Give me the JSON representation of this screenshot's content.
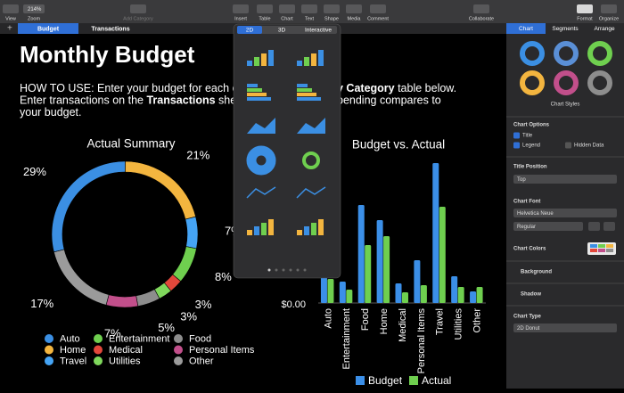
{
  "toolbar": {
    "items": [
      "View",
      "Zoom",
      "Add Category",
      "Insert",
      "Table",
      "Chart",
      "Text",
      "Shape",
      "Media",
      "Comment",
      "Collaborate",
      "Format",
      "Organize"
    ],
    "zoom": "214%"
  },
  "sheet_tabs": [
    "Budget",
    "Transactions"
  ],
  "sheet": {
    "title": "Monthly Budget",
    "instructions": [
      {
        "left": [
          {
            "text": "HOW TO USE: Enter your budget for each cate",
            "bold": false
          }
        ],
        "right": [
          {
            "text": "y Category",
            "bold": true
          },
          {
            "text": " table below.",
            "bold": false
          }
        ]
      },
      {
        "left": [
          {
            "text": "Enter transactions on the ",
            "bold": false
          },
          {
            "text": "Transactions",
            "bold": true
          },
          {
            "text": " sheet t",
            "bold": false
          }
        ],
        "right": [
          {
            "text": "pending compares to",
            "bold": false
          }
        ]
      },
      {
        "left": [
          {
            "text": "your budget.",
            "bold": false
          }
        ],
        "right": []
      }
    ]
  },
  "donut_chart": {
    "type": "donut",
    "title": "Actual Summary",
    "categories": [
      "Auto",
      "Home",
      "Travel",
      "Entertainment",
      "Medical",
      "Utilities",
      "Food",
      "Personal Items",
      "Other"
    ],
    "values": [
      29,
      21,
      7,
      8,
      3,
      3,
      5,
      7,
      17
    ],
    "value_labels": [
      "29%",
      "21%",
      "7%",
      "8%",
      "3%",
      "3%",
      "5%",
      "7%",
      "17%"
    ],
    "colors": [
      "#3b8fe3",
      "#f3b53f",
      "#45a4f5",
      "#6fcf4f",
      "#e2473b",
      "#7fd85c",
      "#8d8d8d",
      "#c24f8b",
      "#9b9b9b"
    ]
  },
  "bar_chart": {
    "type": "bar",
    "title": "Budget vs. Actual",
    "categories": [
      "Auto",
      "Entertainment",
      "Food",
      "Home",
      "Medical",
      "Personal Items",
      "Travel",
      "Utilities",
      "Other"
    ],
    "series": [
      {
        "name": "Budget",
        "color": "#3b8fe8",
        "values": [
          850,
          240,
          1100,
          930,
          220,
          480,
          1570,
          300,
          130
        ]
      },
      {
        "name": "Actual",
        "color": "#6fcf4f",
        "values": [
          270,
          150,
          650,
          750,
          120,
          200,
          1080,
          180,
          180
        ]
      }
    ],
    "ylim": [
      0,
      1600
    ],
    "yticks": [
      {
        "value": 0,
        "label": "$0.00"
      }
    ]
  },
  "popover": {
    "tabs": [
      "2D",
      "3D",
      "Interactive"
    ]
  },
  "sidebar": {
    "tabs": [
      "Chart",
      "Segments",
      "Arrange"
    ],
    "styles_label": "Chart Styles",
    "options_title": "Chart Options",
    "checkboxes": [
      "Title",
      "Legend",
      "Hidden Data"
    ],
    "title_position_label": "Title Position",
    "title_position": "Top",
    "font_label": "Chart Font",
    "font": "Helvetica Neue",
    "font_style": "Regular",
    "colors_label": "Chart Colors",
    "background": "Background",
    "shadow": "Shadow",
    "type_label": "Chart Type",
    "chart_type": "2D Donut"
  }
}
